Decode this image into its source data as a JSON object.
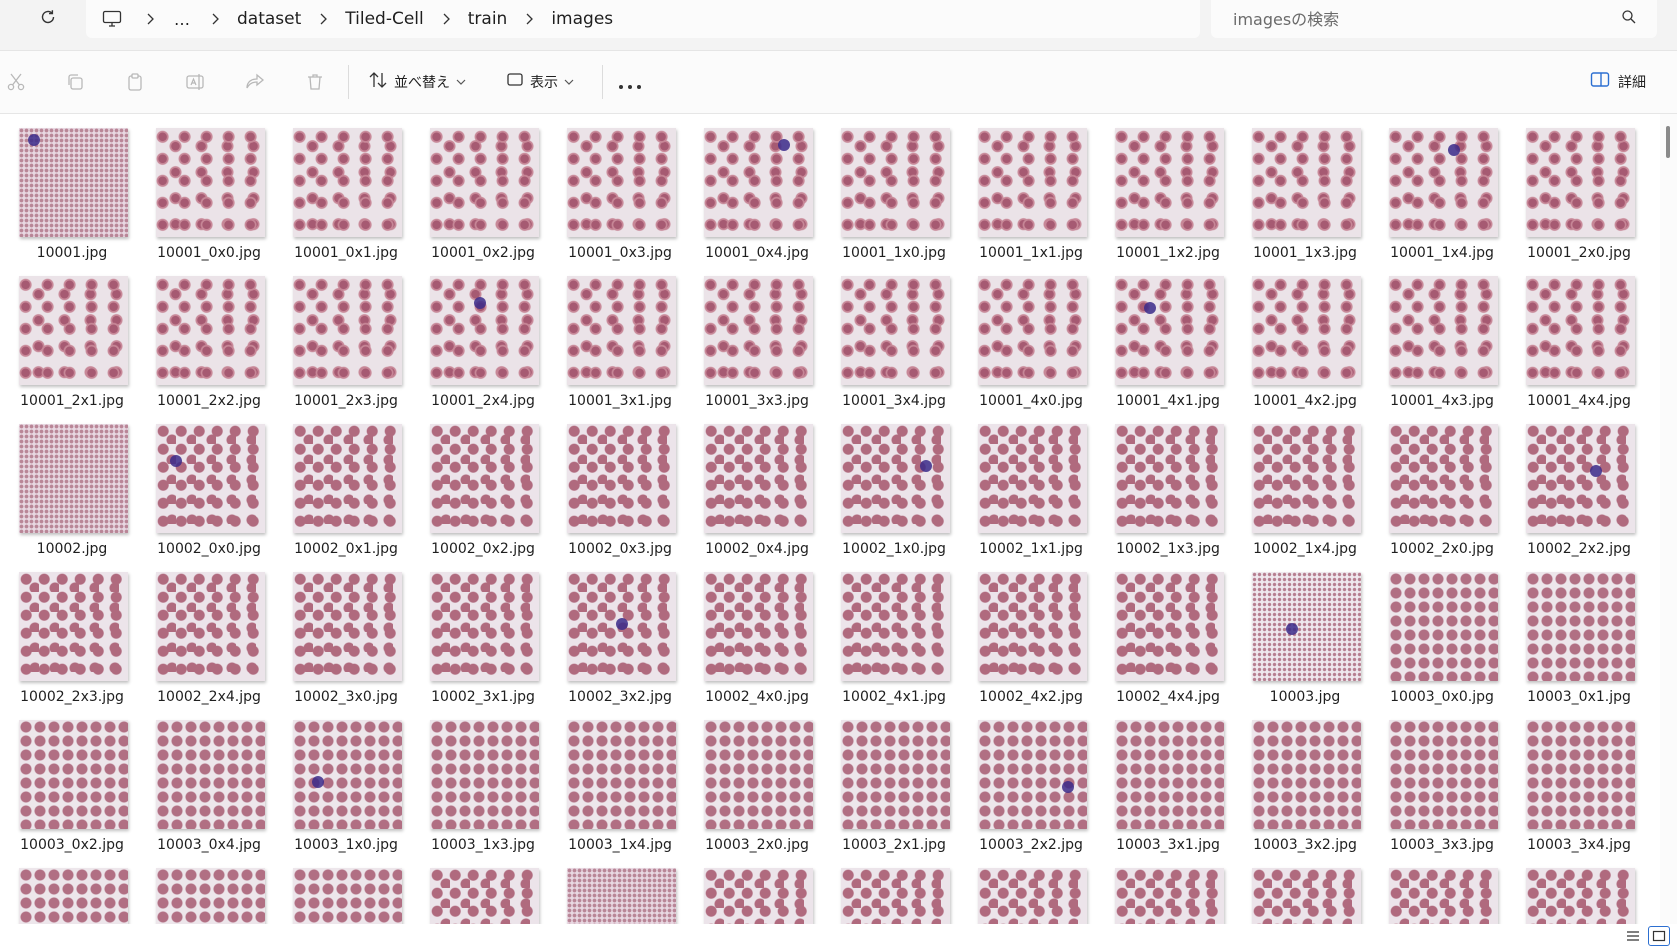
{
  "breadcrumb": {
    "overflow_label": "…",
    "items": [
      "dataset",
      "Tiled-Cell",
      "train",
      "images"
    ]
  },
  "search": {
    "placeholder": "imagesの検索"
  },
  "toolbar": {
    "sort_label": "並べ替え",
    "view_label": "表示",
    "details_label": "詳細"
  },
  "files": [
    "10001.jpg",
    "10001_0x0.jpg",
    "10001_0x1.jpg",
    "10001_0x2.jpg",
    "10001_0x3.jpg",
    "10001_0x4.jpg",
    "10001_1x0.jpg",
    "10001_1x1.jpg",
    "10001_1x2.jpg",
    "10001_1x3.jpg",
    "10001_1x4.jpg",
    "10001_2x0.jpg",
    "10001_2x1.jpg",
    "10001_2x2.jpg",
    "10001_2x3.jpg",
    "10001_2x4.jpg",
    "10001_3x1.jpg",
    "10001_3x3.jpg",
    "10001_3x4.jpg",
    "10001_4x0.jpg",
    "10001_4x1.jpg",
    "10001_4x2.jpg",
    "10001_4x3.jpg",
    "10001_4x4.jpg",
    "10002.jpg",
    "10002_0x0.jpg",
    "10002_0x1.jpg",
    "10002_0x2.jpg",
    "10002_0x3.jpg",
    "10002_0x4.jpg",
    "10002_1x0.jpg",
    "10002_1x1.jpg",
    "10002_1x3.jpg",
    "10002_1x4.jpg",
    "10002_2x0.jpg",
    "10002_2x2.jpg",
    "10002_2x3.jpg",
    "10002_2x4.jpg",
    "10002_3x0.jpg",
    "10002_3x1.jpg",
    "10002_3x2.jpg",
    "10002_4x0.jpg",
    "10002_4x1.jpg",
    "10002_4x2.jpg",
    "10002_4x4.jpg",
    "10003.jpg",
    "10003_0x0.jpg",
    "10003_0x1.jpg",
    "10003_0x2.jpg",
    "10003_0x4.jpg",
    "10003_1x0.jpg",
    "10003_1x3.jpg",
    "10003_1x4.jpg",
    "10003_2x0.jpg",
    "10003_2x1.jpg",
    "10003_2x2.jpg",
    "10003_3x1.jpg",
    "10003_3x2.jpg",
    "10003_3x3.jpg",
    "10003_3x4.jpg",
    "",
    "",
    "",
    "",
    "",
    "",
    "",
    "",
    "",
    "",
    "",
    ""
  ],
  "colors": {
    "accent": "#2c6fd1",
    "cell": "#b06a7e",
    "nucleus": "#3b2a8a"
  }
}
